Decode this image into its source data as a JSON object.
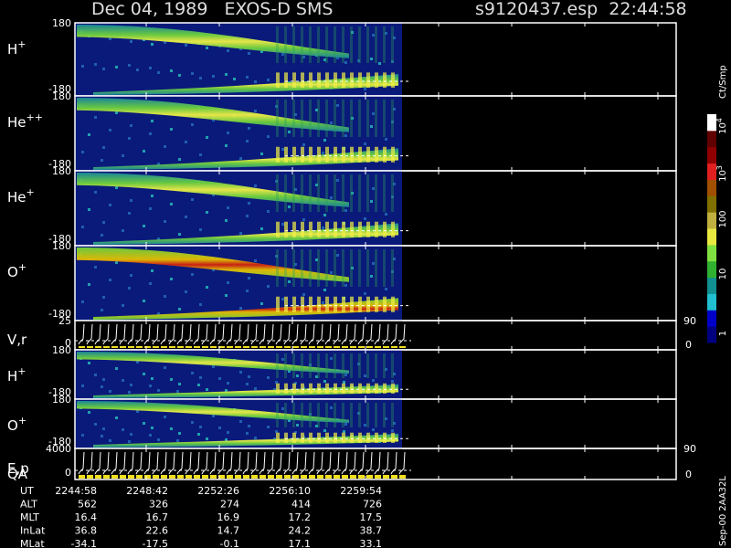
{
  "header": {
    "title": "Dec 04, 1989   EXOS-D SMS",
    "file": "s9120437.esp  22:44:58"
  },
  "panels": [
    {
      "label": "H",
      "sup": "+",
      "top": "180",
      "bottom": "-180"
    },
    {
      "label": "He",
      "sup": "++",
      "top": "180",
      "bottom": "-180"
    },
    {
      "label": "He",
      "sup": "+",
      "top": "180",
      "bottom": "-180"
    },
    {
      "label": "O",
      "sup": "+",
      "top": "180",
      "bottom": "-180"
    },
    {
      "label": "V,r",
      "top": "25",
      "bottom": "0",
      "right_top": "90",
      "right_bottom": "0"
    },
    {
      "label": "H",
      "sup": "+",
      "top": "180",
      "bottom": "-180"
    },
    {
      "label": "O",
      "sup": "+",
      "top": "180",
      "bottom": "-180"
    },
    {
      "label": "E,p",
      "label2": "QA",
      "top": "4000",
      "bottom": "0",
      "right_top": "90",
      "right_bottom": "0"
    }
  ],
  "colorbar": {
    "unit": "Ct/Smp",
    "labels": [
      {
        "text": "10",
        "sup": "4"
      },
      {
        "text": "10",
        "sup": "3"
      },
      {
        "text": "100"
      },
      {
        "text": "10"
      },
      {
        "text": "1"
      }
    ]
  },
  "footer": {
    "rows": [
      {
        "name": "UT",
        "values": [
          "2244:58",
          "2248:42",
          "2252:26",
          "2256:10",
          "2259:54"
        ]
      },
      {
        "name": "ALT",
        "values": [
          "562",
          "326",
          "274",
          "414",
          "726"
        ]
      },
      {
        "name": "MLT",
        "values": [
          "16.4",
          "16.7",
          "16.9",
          "17.2",
          "17.5"
        ]
      },
      {
        "name": "InLat",
        "values": [
          "36.8",
          "22.6",
          "14.7",
          "24.2",
          "38.7"
        ]
      },
      {
        "name": "MLat",
        "values": [
          "-34.1",
          "-17.5",
          "-0.1",
          "17.1",
          "33.1"
        ]
      }
    ]
  },
  "stamp": "Sep-00 2AA32L"
}
